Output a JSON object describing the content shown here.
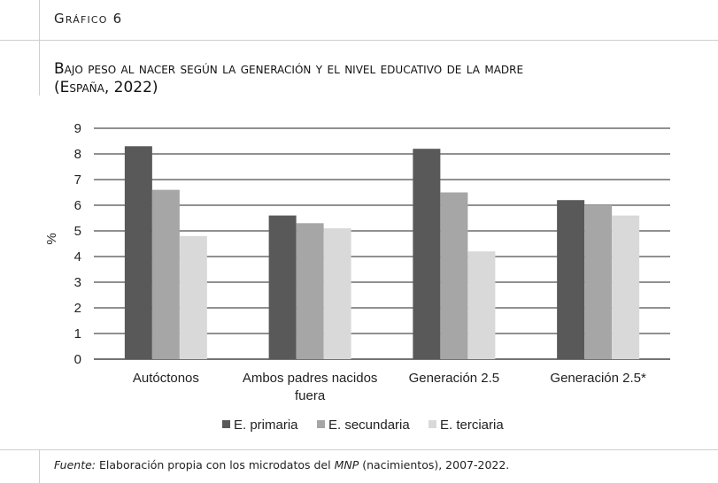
{
  "header": {
    "label": "Gráfico 6"
  },
  "title": {
    "line1": "Bajo peso al nacer según la generación y el nivel educativo de la madre",
    "line2": "(España, 2022)"
  },
  "source": {
    "prefix": "Fuente:",
    "text_before": " Elaboración propia con los microdatos del ",
    "mnp": "MNP",
    "text_after": " (nacimientos), 2007-2022."
  },
  "chart_data": {
    "type": "bar",
    "title": "Bajo peso al nacer según la generación y el nivel educativo de la madre (España, 2022)",
    "xlabel": "",
    "ylabel": "%",
    "ylim": [
      0,
      9
    ],
    "yticks": [
      "0",
      "1",
      "2",
      "3",
      "4",
      "5",
      "6",
      "7",
      "8",
      "9"
    ],
    "grid": true,
    "legend_position": "bottom",
    "categories": [
      "Autóctonos",
      "Ambos padres nacidos fuera",
      "Generación 2.5",
      "Generación 2.5*"
    ],
    "category_lines": [
      [
        "Autóctonos"
      ],
      [
        "Ambos padres nacidos",
        "fuera"
      ],
      [
        "Generación 2.5"
      ],
      [
        "Generación 2.5*"
      ]
    ],
    "series": [
      {
        "name": "E. primaria",
        "color": "#595959",
        "values": [
          8.3,
          5.6,
          8.2,
          6.2
        ]
      },
      {
        "name": "E. secundaria",
        "color": "#a6a6a6",
        "values": [
          6.6,
          5.3,
          6.5,
          6.0
        ]
      },
      {
        "name": "E. terciaria",
        "color": "#d9d9d9",
        "values": [
          4.8,
          5.1,
          4.2,
          5.6
        ]
      }
    ]
  }
}
